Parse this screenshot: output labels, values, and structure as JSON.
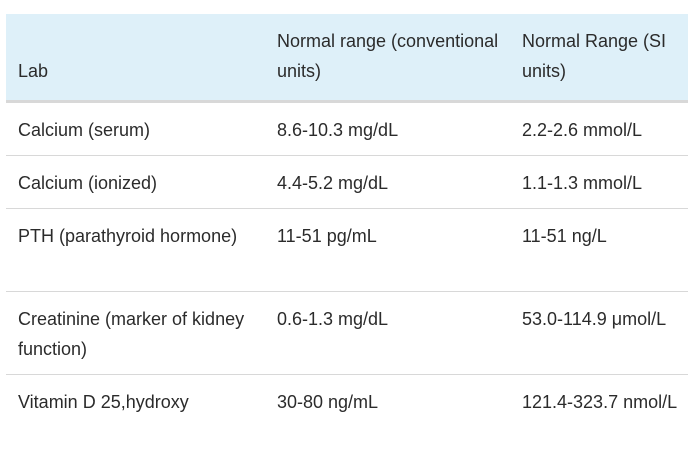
{
  "table": {
    "headers": [
      "Lab",
      "Normal range (conventional units)",
      "Normal Range (SI units)"
    ],
    "rows": [
      [
        "Calcium (serum)",
        "8.6-10.3 mg/dL",
        "2.2-2.6 mmol/L"
      ],
      [
        "Calcium (ionized)",
        "4.4-5.2 mg/dL",
        "1.1-1.3 mmol/L"
      ],
      [
        "PTH (parathyroid hormone)",
        "11-51 pg/mL",
        "11-51 ng/L"
      ],
      [
        "Creatinine (marker of kidney function)",
        "0.6-1.3 mg/dL",
        "53.0-114.9 μmol/L"
      ],
      [
        "Vitamin D 25,hydroxy",
        "30-80 ng/mL",
        "121.4-323.7 nmol/L"
      ]
    ]
  }
}
